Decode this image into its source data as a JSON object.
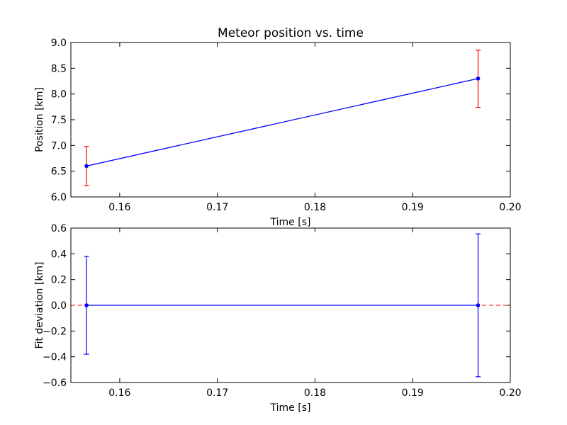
{
  "chart_data": [
    {
      "type": "line",
      "title": "Meteor position vs. time",
      "xlabel": "Time [s]",
      "ylabel": "Position [km]",
      "xlim": [
        0.155,
        0.2
      ],
      "ylim": [
        6.0,
        9.0
      ],
      "xticks": [
        "0.16",
        "0.17",
        "0.18",
        "0.19",
        "0.20"
      ],
      "yticks": [
        "6.0",
        "6.5",
        "7.0",
        "7.5",
        "8.0",
        "8.5",
        "9.0"
      ],
      "grid": false,
      "line_color": "#0000ff",
      "errorbar_color": "#ff0000",
      "series": [
        {
          "x": [
            0.1566,
            0.1967
          ],
          "y": [
            6.6,
            8.3
          ],
          "y_lower": [
            6.22,
            7.74
          ],
          "y_upper": [
            6.98,
            8.85
          ]
        }
      ]
    },
    {
      "type": "line",
      "title": "",
      "xlabel": "Time [s]",
      "ylabel": "Fit deviation [km]",
      "xlim": [
        0.155,
        0.2
      ],
      "ylim": [
        -0.6,
        0.6
      ],
      "xticks": [
        "0.16",
        "0.17",
        "0.18",
        "0.19",
        "0.20"
      ],
      "yticks": [
        "−0.6",
        "−0.4",
        "−0.2",
        "0.0",
        "0.2",
        "0.4",
        "0.6"
      ],
      "grid": false,
      "line_color": "#0000ff",
      "errorbar_color": "#0000ff",
      "reference_line": {
        "y": 0.0,
        "color": "#ff0000",
        "style": "dashed"
      },
      "series": [
        {
          "x": [
            0.1566,
            0.1967
          ],
          "y": [
            0.0,
            0.0
          ],
          "y_lower": [
            -0.38,
            -0.555
          ],
          "y_upper": [
            0.38,
            0.555
          ]
        }
      ]
    }
  ]
}
